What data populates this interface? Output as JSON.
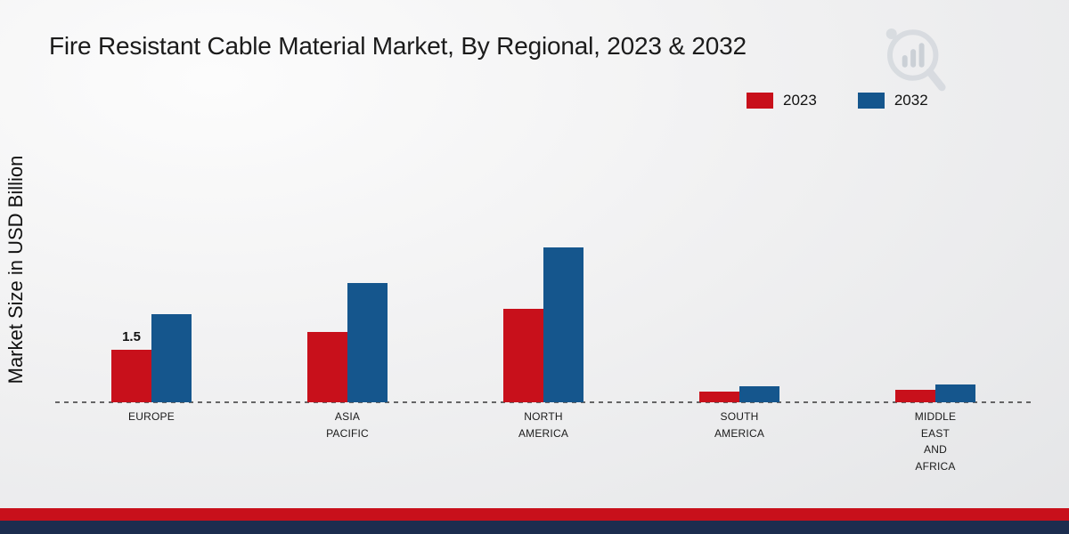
{
  "header": {
    "title": "Fire Resistant Cable Material Market, By Regional, 2023 & 2032"
  },
  "y_axis": {
    "label": "Market Size in USD Billion"
  },
  "legend": {
    "items": [
      {
        "label": "2023",
        "color": "#c8101b"
      },
      {
        "label": "2032",
        "color": "#15568d"
      }
    ]
  },
  "chart_data": {
    "type": "bar",
    "title": "Fire Resistant Cable Material Market, By Regional, 2023 & 2032",
    "ylabel": "Market Size in USD Billion",
    "categories": [
      "EUROPE",
      "ASIA PACIFIC",
      "NORTH AMERICA",
      "SOUTH AMERICA",
      "MIDDLE EAST AND AFRICA"
    ],
    "series": [
      {
        "name": "2023",
        "color": "#c8101b",
        "values": [
          1.5,
          2.0,
          2.65,
          0.3,
          0.35
        ]
      },
      {
        "name": "2032",
        "color": "#15568d",
        "values": [
          2.5,
          3.4,
          4.4,
          0.45,
          0.5
        ]
      }
    ],
    "bar_labels": [
      {
        "category_index": 0,
        "series_index": 0,
        "text": "1.5"
      }
    ],
    "ylim": [
      0,
      8
    ],
    "grid": false,
    "legend_position": "top-right",
    "baseline_style": "dashed"
  },
  "footer": {
    "stripe_red": "#c8101b",
    "stripe_navy": "#1c2d4f"
  }
}
